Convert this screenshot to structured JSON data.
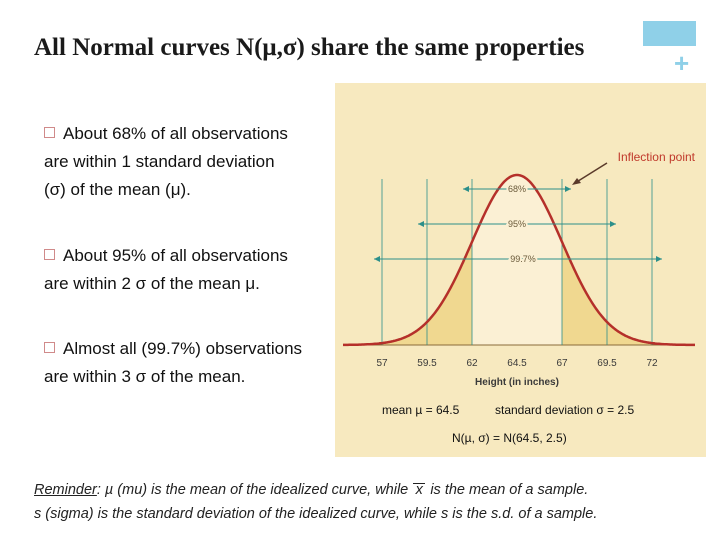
{
  "title": "All Normal curves N(μ,σ) share the same properties",
  "bullets": [
    {
      "line1": "About 68% of all observations",
      "line2": "are within 1 standard deviation",
      "line3": "(σ) of the mean (μ)."
    },
    {
      "line1": "About 95% of all observations",
      "line2": "are within 2 σ of the mean μ."
    },
    {
      "line1": "Almost all (99.7%) observations",
      "line2": "are within 3 σ of the mean."
    }
  ],
  "figure": {
    "inflection_label": "Inflection point",
    "pct_68": "68%",
    "pct_95": "95%",
    "pct_997": "99.7%",
    "ticks": [
      "57",
      "59.5",
      "62",
      "64.5",
      "67",
      "69.5",
      "72"
    ],
    "xlabel": "Height (in inches)",
    "mean_text": "mean µ = 64.5",
    "sd_text": "standard deviation σ = 2.5",
    "dist_text": "N(µ, σ) =  N(64.5, 2.5)"
  },
  "footer": {
    "line1_prefix": "Reminder",
    "line1_rest": ": µ (mu) is the mean of the idealized curve, while",
    "line1_xbar": "x",
    "line1_end": "is the mean of a sample.",
    "line2": "s (sigma) is the standard deviation of the idealized curve, while s is the s.d. of a sample."
  },
  "colors": {
    "curve": "#b5302a",
    "figure_bg": "#f7e9bf",
    "inner_fill": "#fbf0d4",
    "tail_fill": "#e0aa3a",
    "band_fill": "#f0d890",
    "guide": "#2c8f8a",
    "accent": "#8fd0e8"
  }
}
